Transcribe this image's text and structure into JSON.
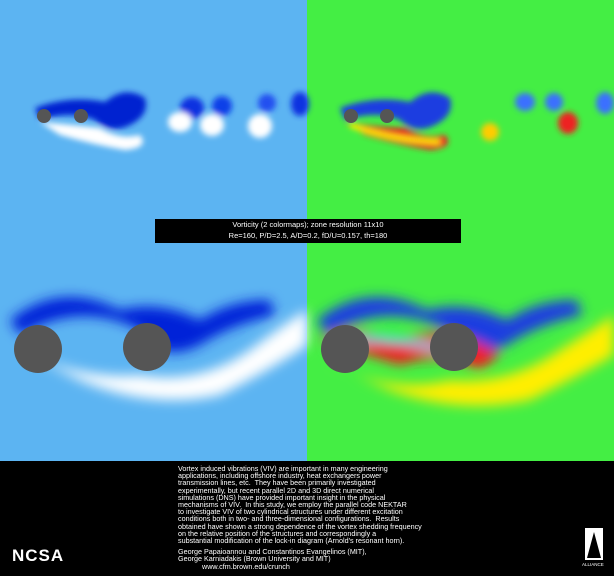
{
  "caption": {
    "title": "Vorticity (2 colormaps); zone resolution 11x10",
    "parameters": "Re=160, P/D=2.5, A/D=0.2, fD/U=0.157, th=180"
  },
  "abstract": {
    "lines": [
      "Vortex induced vibrations (VIV) are important in many engineering",
      "applications, including offshore industry, heat exchangers power",
      "transmission lines, etc.  They have been primarily investigated",
      "experimentally, but recent parallel 2D and 3D direct numerical",
      "simulations (DNS) have provided important insight in the physical",
      "mechanisms of VIV.  In this study, we employ the parallel code NEKTAR",
      "to investigate VIV of two cylindrical structures under different excitation",
      "conditions both in two- and three-dimensional configurations.  Results",
      "obtained have shown a strong dependence of the vortex shedding frequency",
      "on the relative position of the structures and correspondingly a",
      "substantial modification of the lock-in diagram (Arnold's resonant horn)."
    ]
  },
  "authors": [
    "George Papaioannou and Constantinos Evangelinos (MIT),",
    "George Karniadakis (Brown University and MIT)"
  ],
  "url": "www.cfm.brown.edu/crunch",
  "logos": {
    "left": "NCSA",
    "right": "ALLIANCE"
  }
}
